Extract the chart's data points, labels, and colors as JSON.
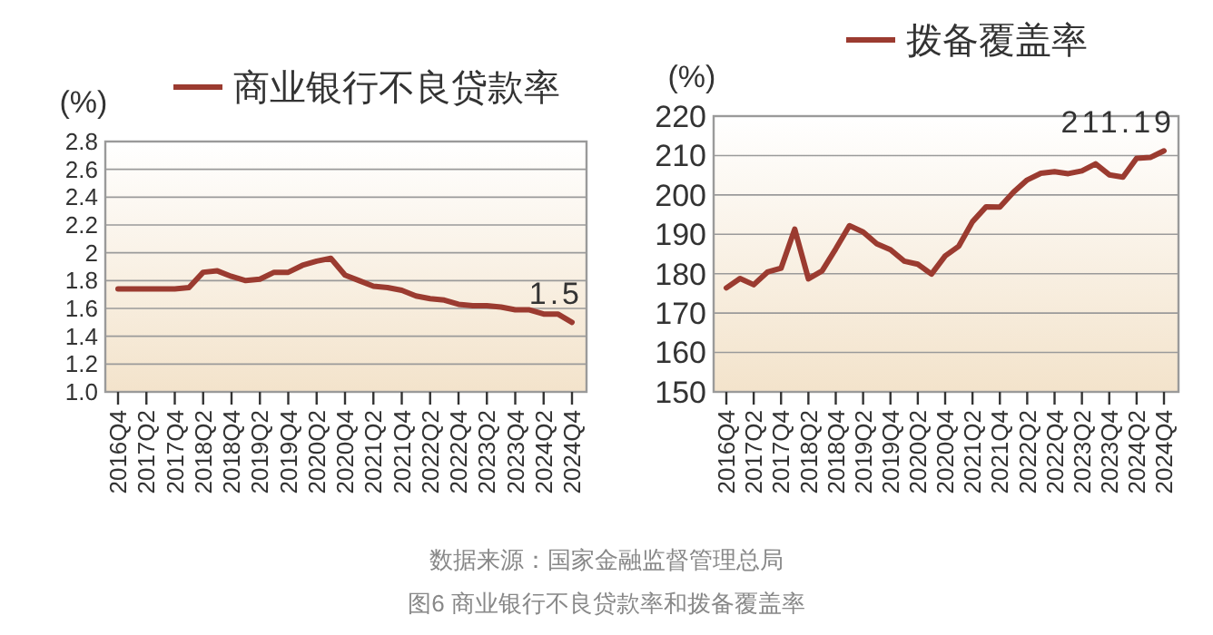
{
  "chart_data": [
    {
      "type": "line",
      "ylabel": "(%)",
      "legend": "top",
      "grid": "y",
      "categories": [
        "2016Q4",
        null,
        "2017Q2",
        null,
        "2017Q4",
        null,
        "2018Q2",
        null,
        "2018Q4",
        null,
        "2019Q2",
        null,
        "2019Q4",
        null,
        "2020Q2",
        null,
        "2020Q4",
        null,
        "2021Q2",
        null,
        "2021Q4",
        null,
        "2022Q2",
        null,
        "2022Q4",
        null,
        "2023Q2",
        null,
        "2023Q4",
        null,
        "2024Q2",
        null,
        "2024Q4"
      ],
      "ylim": [
        1.0,
        2.8
      ],
      "yticks": [
        {
          "value": 1.0,
          "label": "1.0"
        },
        1.2,
        1.4,
        1.6,
        1.8,
        {
          "value": 2.0,
          "label": "2"
        },
        2.2,
        2.4,
        2.6,
        2.8
      ],
      "series": [
        {
          "name": "商业银行不良贷款率",
          "color": "#9b3b30",
          "values": [
            1.74,
            1.74,
            1.74,
            1.74,
            1.74,
            1.75,
            1.86,
            1.87,
            1.83,
            1.8,
            1.81,
            1.86,
            1.86,
            1.91,
            1.94,
            1.96,
            1.84,
            1.8,
            1.76,
            1.75,
            1.73,
            1.69,
            1.67,
            1.66,
            1.63,
            1.62,
            1.62,
            1.61,
            1.59,
            1.59,
            1.56,
            1.56,
            1.5
          ],
          "value_labels": [
            null,
            null,
            null,
            null,
            null,
            null,
            null,
            null,
            null,
            null,
            null,
            null,
            null,
            null,
            null,
            null,
            null,
            null,
            null,
            null,
            null,
            null,
            null,
            null,
            null,
            null,
            null,
            null,
            null,
            null,
            null,
            null,
            "1.5"
          ]
        }
      ],
      "annotations": [
        "数据来源：国家金融监督管理总局",
        "图6 商业银行不良贷款率和拨备覆盖率"
      ]
    },
    {
      "type": "line",
      "ylabel": "(%)",
      "legend": "top",
      "grid": "y",
      "categories": [
        "2016Q4",
        null,
        "2017Q2",
        null,
        "2017Q4",
        null,
        "2018Q2",
        null,
        "2018Q4",
        null,
        "2019Q2",
        null,
        "2019Q4",
        null,
        "2020Q2",
        null,
        "2020Q4",
        null,
        "2021Q2",
        null,
        "2021Q4",
        null,
        "2022Q2",
        null,
        "2022Q4",
        null,
        "2023Q2",
        null,
        "2023Q4",
        null,
        "2024Q2",
        null,
        "2024Q4"
      ],
      "ylim": [
        150,
        220
      ],
      "yticks": [
        150,
        160,
        170,
        180,
        190,
        200,
        210,
        220
      ],
      "series": [
        {
          "name": "拨备覆盖率",
          "color": "#9b3b30",
          "values": [
            176.4,
            178.8,
            177.2,
            180.4,
            181.4,
            191.3,
            178.7,
            180.7,
            186.3,
            192.2,
            190.6,
            187.6,
            186.1,
            183.2,
            182.4,
            179.9,
            184.5,
            187.0,
            193.2,
            197.0,
            196.9,
            200.7,
            203.8,
            205.5,
            205.9,
            205.4,
            206.1,
            207.9,
            205.1,
            204.5,
            209.3,
            209.5,
            211.19
          ],
          "value_labels": [
            null,
            null,
            null,
            null,
            null,
            null,
            null,
            null,
            null,
            null,
            null,
            null,
            null,
            null,
            null,
            null,
            null,
            null,
            null,
            null,
            null,
            null,
            null,
            null,
            null,
            null,
            null,
            null,
            null,
            null,
            null,
            null,
            "211.19"
          ]
        }
      ]
    }
  ]
}
